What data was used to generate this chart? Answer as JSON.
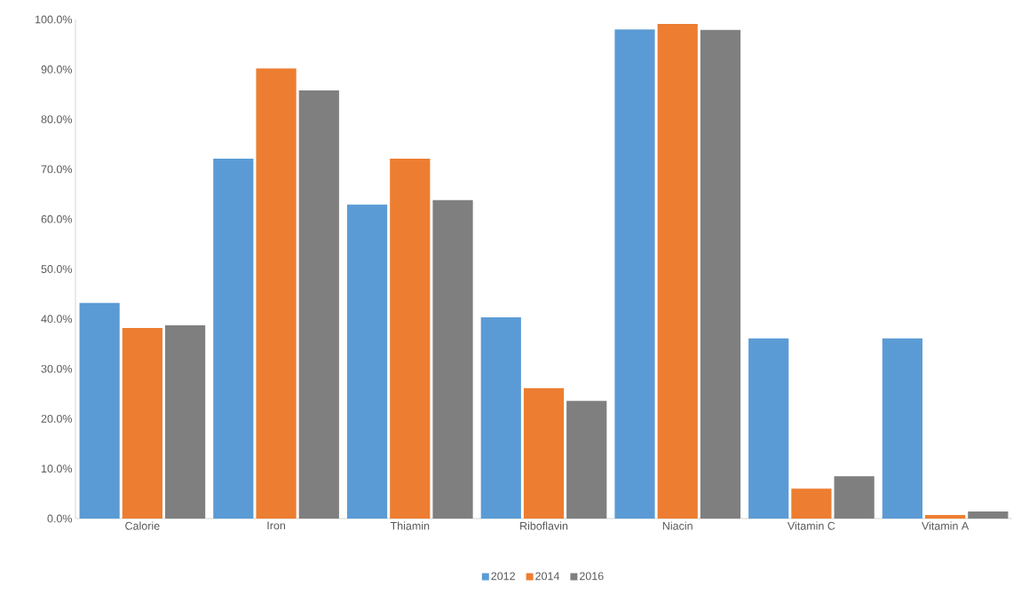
{
  "chart_data": {
    "type": "bar",
    "categories": [
      "Calorie",
      "Iron",
      "Thiamin",
      "Riboflavin",
      "Niacin",
      "Vitamin C",
      "Vitamin A"
    ],
    "series": [
      {
        "name": "2012",
        "color": "#5b9bd5",
        "values": [
          43.2,
          72.1,
          62.9,
          40.3,
          98.0,
          36.1,
          36.1
        ]
      },
      {
        "name": "2014",
        "color": "#ed7d31",
        "values": [
          38.2,
          90.2,
          72.1,
          26.1,
          99.1,
          6.0,
          0.7
        ]
      },
      {
        "name": "2016",
        "color": "#7f7f7f",
        "values": [
          38.7,
          85.8,
          63.8,
          23.6,
          97.9,
          8.5,
          1.4
        ]
      }
    ],
    "ylim": [
      0,
      100
    ],
    "yticks": [
      {
        "value": 0,
        "label": "0.0%"
      },
      {
        "value": 10,
        "label": "10.0%"
      },
      {
        "value": 20,
        "label": "20.0%"
      },
      {
        "value": 30,
        "label": "30.0%"
      },
      {
        "value": 40,
        "label": "40.0%"
      },
      {
        "value": 50,
        "label": "50.0%"
      },
      {
        "value": 60,
        "label": "60.0%"
      },
      {
        "value": 70,
        "label": "70.0%"
      },
      {
        "value": 80,
        "label": "80.0%"
      },
      {
        "value": 90,
        "label": "90.0%"
      },
      {
        "value": 100,
        "label": "100.0%"
      }
    ],
    "grid": false,
    "legend": "bottom"
  }
}
